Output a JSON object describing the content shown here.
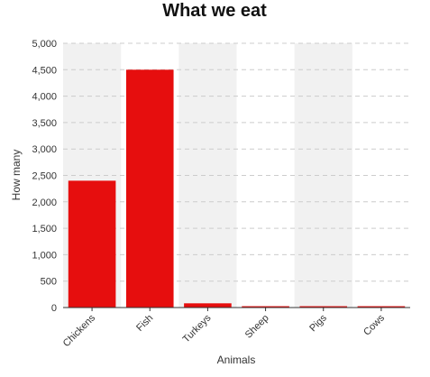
{
  "chart_data": {
    "type": "bar",
    "title": "What we eat",
    "xlabel": "Animals",
    "ylabel": "How many",
    "categories": [
      "Chickens",
      "Fish",
      "Turkeys",
      "Sheep",
      "Pigs",
      "Cows"
    ],
    "values": [
      2400,
      4500,
      80,
      20,
      20,
      10
    ],
    "ylim": [
      0,
      5000
    ],
    "yticks": [
      "0",
      "500",
      "1,000",
      "1,500",
      "2,000",
      "2,500",
      "3,000",
      "3,500",
      "4,000",
      "4,500",
      "5,000"
    ],
    "grid": "dashed horizontal",
    "legend": "none",
    "colors": {
      "bar": "#e60e0e",
      "band": "#f1f1f1",
      "grid": "#cccccc",
      "axis": "#333333"
    }
  }
}
